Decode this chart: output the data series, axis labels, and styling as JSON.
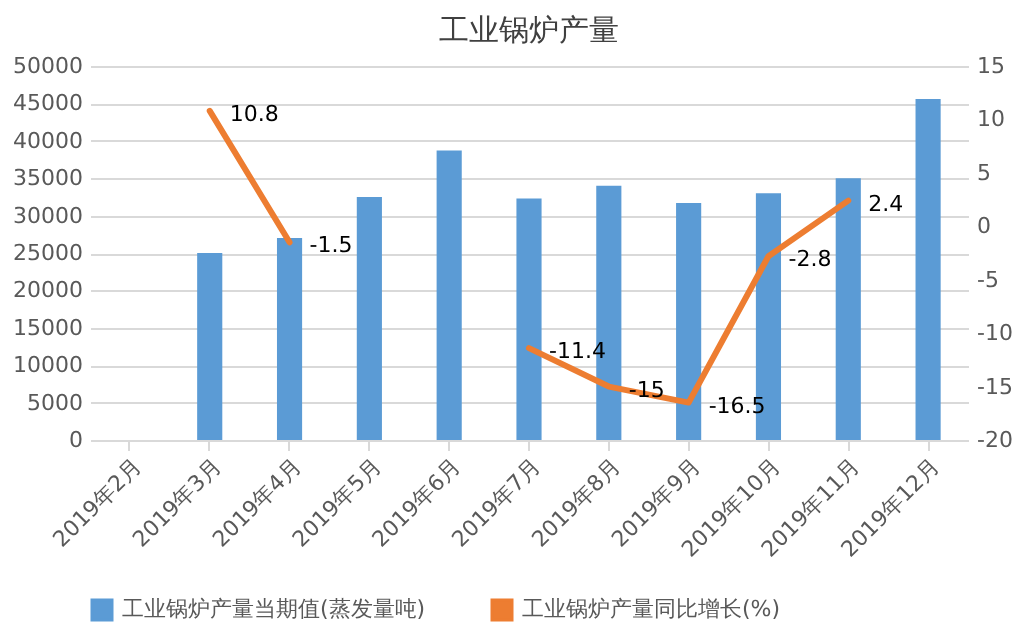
{
  "chart_data": {
    "type": "bar",
    "title": "工业锅炉产量",
    "categories": [
      "2019年2月",
      "2019年3月",
      "2019年4月",
      "2019年5月",
      "2019年6月",
      "2019年7月",
      "2019年8月",
      "2019年9月",
      "2019年10月",
      "2019年11月",
      "2019年12月"
    ],
    "series": [
      {
        "name": "工业锅炉产量当期值(蒸发量吨)",
        "color": "#5b9bd5",
        "values": [
          null,
          25000,
          27000,
          32500,
          38700,
          32300,
          34000,
          31700,
          33000,
          35000,
          45600
        ]
      },
      {
        "name": "工业锅炉产量同比增长(%)",
        "type": "line",
        "axis": "y2",
        "color": "#ed7d31",
        "data_labels": true,
        "values": [
          null,
          10.8,
          -1.5,
          null,
          null,
          -11.4,
          -15,
          -16.5,
          -2.8,
          2.4,
          null
        ]
      }
    ],
    "ylim": [
      0,
      50000
    ],
    "yticks": [
      0,
      5000,
      10000,
      15000,
      20000,
      25000,
      30000,
      35000,
      40000,
      45000,
      50000
    ],
    "y2lim": [
      -20,
      15
    ],
    "y2ticks": [
      -20,
      -15,
      -10,
      -5,
      0,
      5,
      10,
      15
    ],
    "grid": "y",
    "legend": "bottom",
    "marker": "none",
    "line_style": "solid"
  }
}
